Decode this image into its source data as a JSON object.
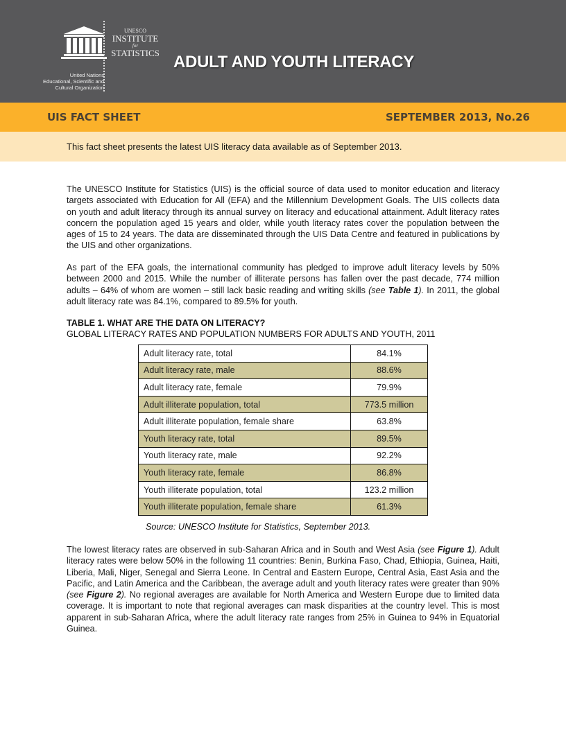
{
  "header": {
    "logo_text": "UNESCO",
    "org_name": [
      "United Nations",
      "Educational, Scientific and",
      "Cultural Organization"
    ],
    "uis_logo": {
      "line1": "UNESCO",
      "line2": "INSTITUTE",
      "line3": "for",
      "line4": "STATISTICS"
    },
    "title": "ADULT AND YOUTH LITERACY"
  },
  "band": {
    "left": "UIS FACT SHEET",
    "right": "SEPTEMBER 2013, No.26"
  },
  "intro": "This fact sheet presents the latest UIS literacy data available as of September 2013.",
  "paragraphs": {
    "p1": "The UNESCO Institute for Statistics (UIS) is the official source of data used to monitor education and literacy targets associated with Education for All (EFA) and the Millennium Development Goals. The UIS collects data on youth and adult literacy through its annual survey on literacy and educational attainment. Adult literacy rates concern the population aged 15 years and older, while youth literacy rates cover the population between the ages of 15 to 24 years. The data are disseminated through the UIS Data Centre and featured in publications by the UIS and other organizations.",
    "p2a": "As part of the EFA goals, the international community has pledged to improve adult literacy levels by 50% between 2000 and 2015. While the number of illiterate persons has fallen over the past decade, 774 million adults – 64% of whom are women – still lack basic reading and writing skills ",
    "p2ref": "(see ",
    "p2refb": "Table 1",
    "p2refc": ").",
    "p2b": " In 2011, the global adult literacy rate was 84.1%, compared to 89.5% for youth.",
    "p3a": "The lowest literacy rates are observed in sub-Saharan Africa and in South and West Asia ",
    "p3ref": "(see ",
    "p3refb": "Figure 1",
    "p3refc": ").",
    "p3b": " Adult literacy rates were below 50% in the following 11 countries: Benin, Burkina Faso, Chad, Ethiopia, Guinea, Haiti, Liberia, Mali, Niger, Senegal and Sierra Leone. In Central and Eastern Europe, Central Asia, East Asia and the Pacific, and Latin America and the Caribbean, the average adult and youth literacy rates were greater than 90% ",
    "p3ref2": "(see ",
    "p3ref2b": "Figure 2",
    "p3ref2c": ").",
    "p3c": " No regional averages are available for North America and Western Europe due to limited data coverage. It is important to note that regional averages can mask disparities at the country level. This is most apparent in sub-Saharan Africa, where the adult literacy rate ranges from 25% in Guinea to 94% in Equatorial Guinea."
  },
  "table": {
    "title": "TABLE 1. WHAT ARE THE DATA ON LITERACY?",
    "subtitle": "GLOBAL LITERACY RATES AND POPULATION NUMBERS FOR ADULTS AND YOUTH, 2011",
    "rows": [
      {
        "label": "Adult literacy rate, total",
        "value": "84.1%"
      },
      {
        "label": "Adult literacy rate, male",
        "value": "88.6%"
      },
      {
        "label": "Adult literacy rate, female",
        "value": "79.9%"
      },
      {
        "label": "Adult illiterate population, total",
        "value": "773.5 million"
      },
      {
        "label": "Adult illiterate population, female share",
        "value": "63.8%"
      },
      {
        "label": "Youth literacy rate, total",
        "value": "89.5%"
      },
      {
        "label": "Youth literacy rate, male",
        "value": "92.2%"
      },
      {
        "label": "Youth literacy rate, female",
        "value": "86.8%"
      },
      {
        "label": "Youth illiterate population, total",
        "value": "123.2 million"
      },
      {
        "label": "Youth illiterate population, female share",
        "value": "61.3%"
      }
    ],
    "source": "Source: UNESCO Institute for Statistics, September 2013."
  },
  "colors": {
    "header": "#58585a",
    "band": "#fbb12a",
    "cream": "#fde6bb",
    "row_highlight": "#cfc99b"
  }
}
